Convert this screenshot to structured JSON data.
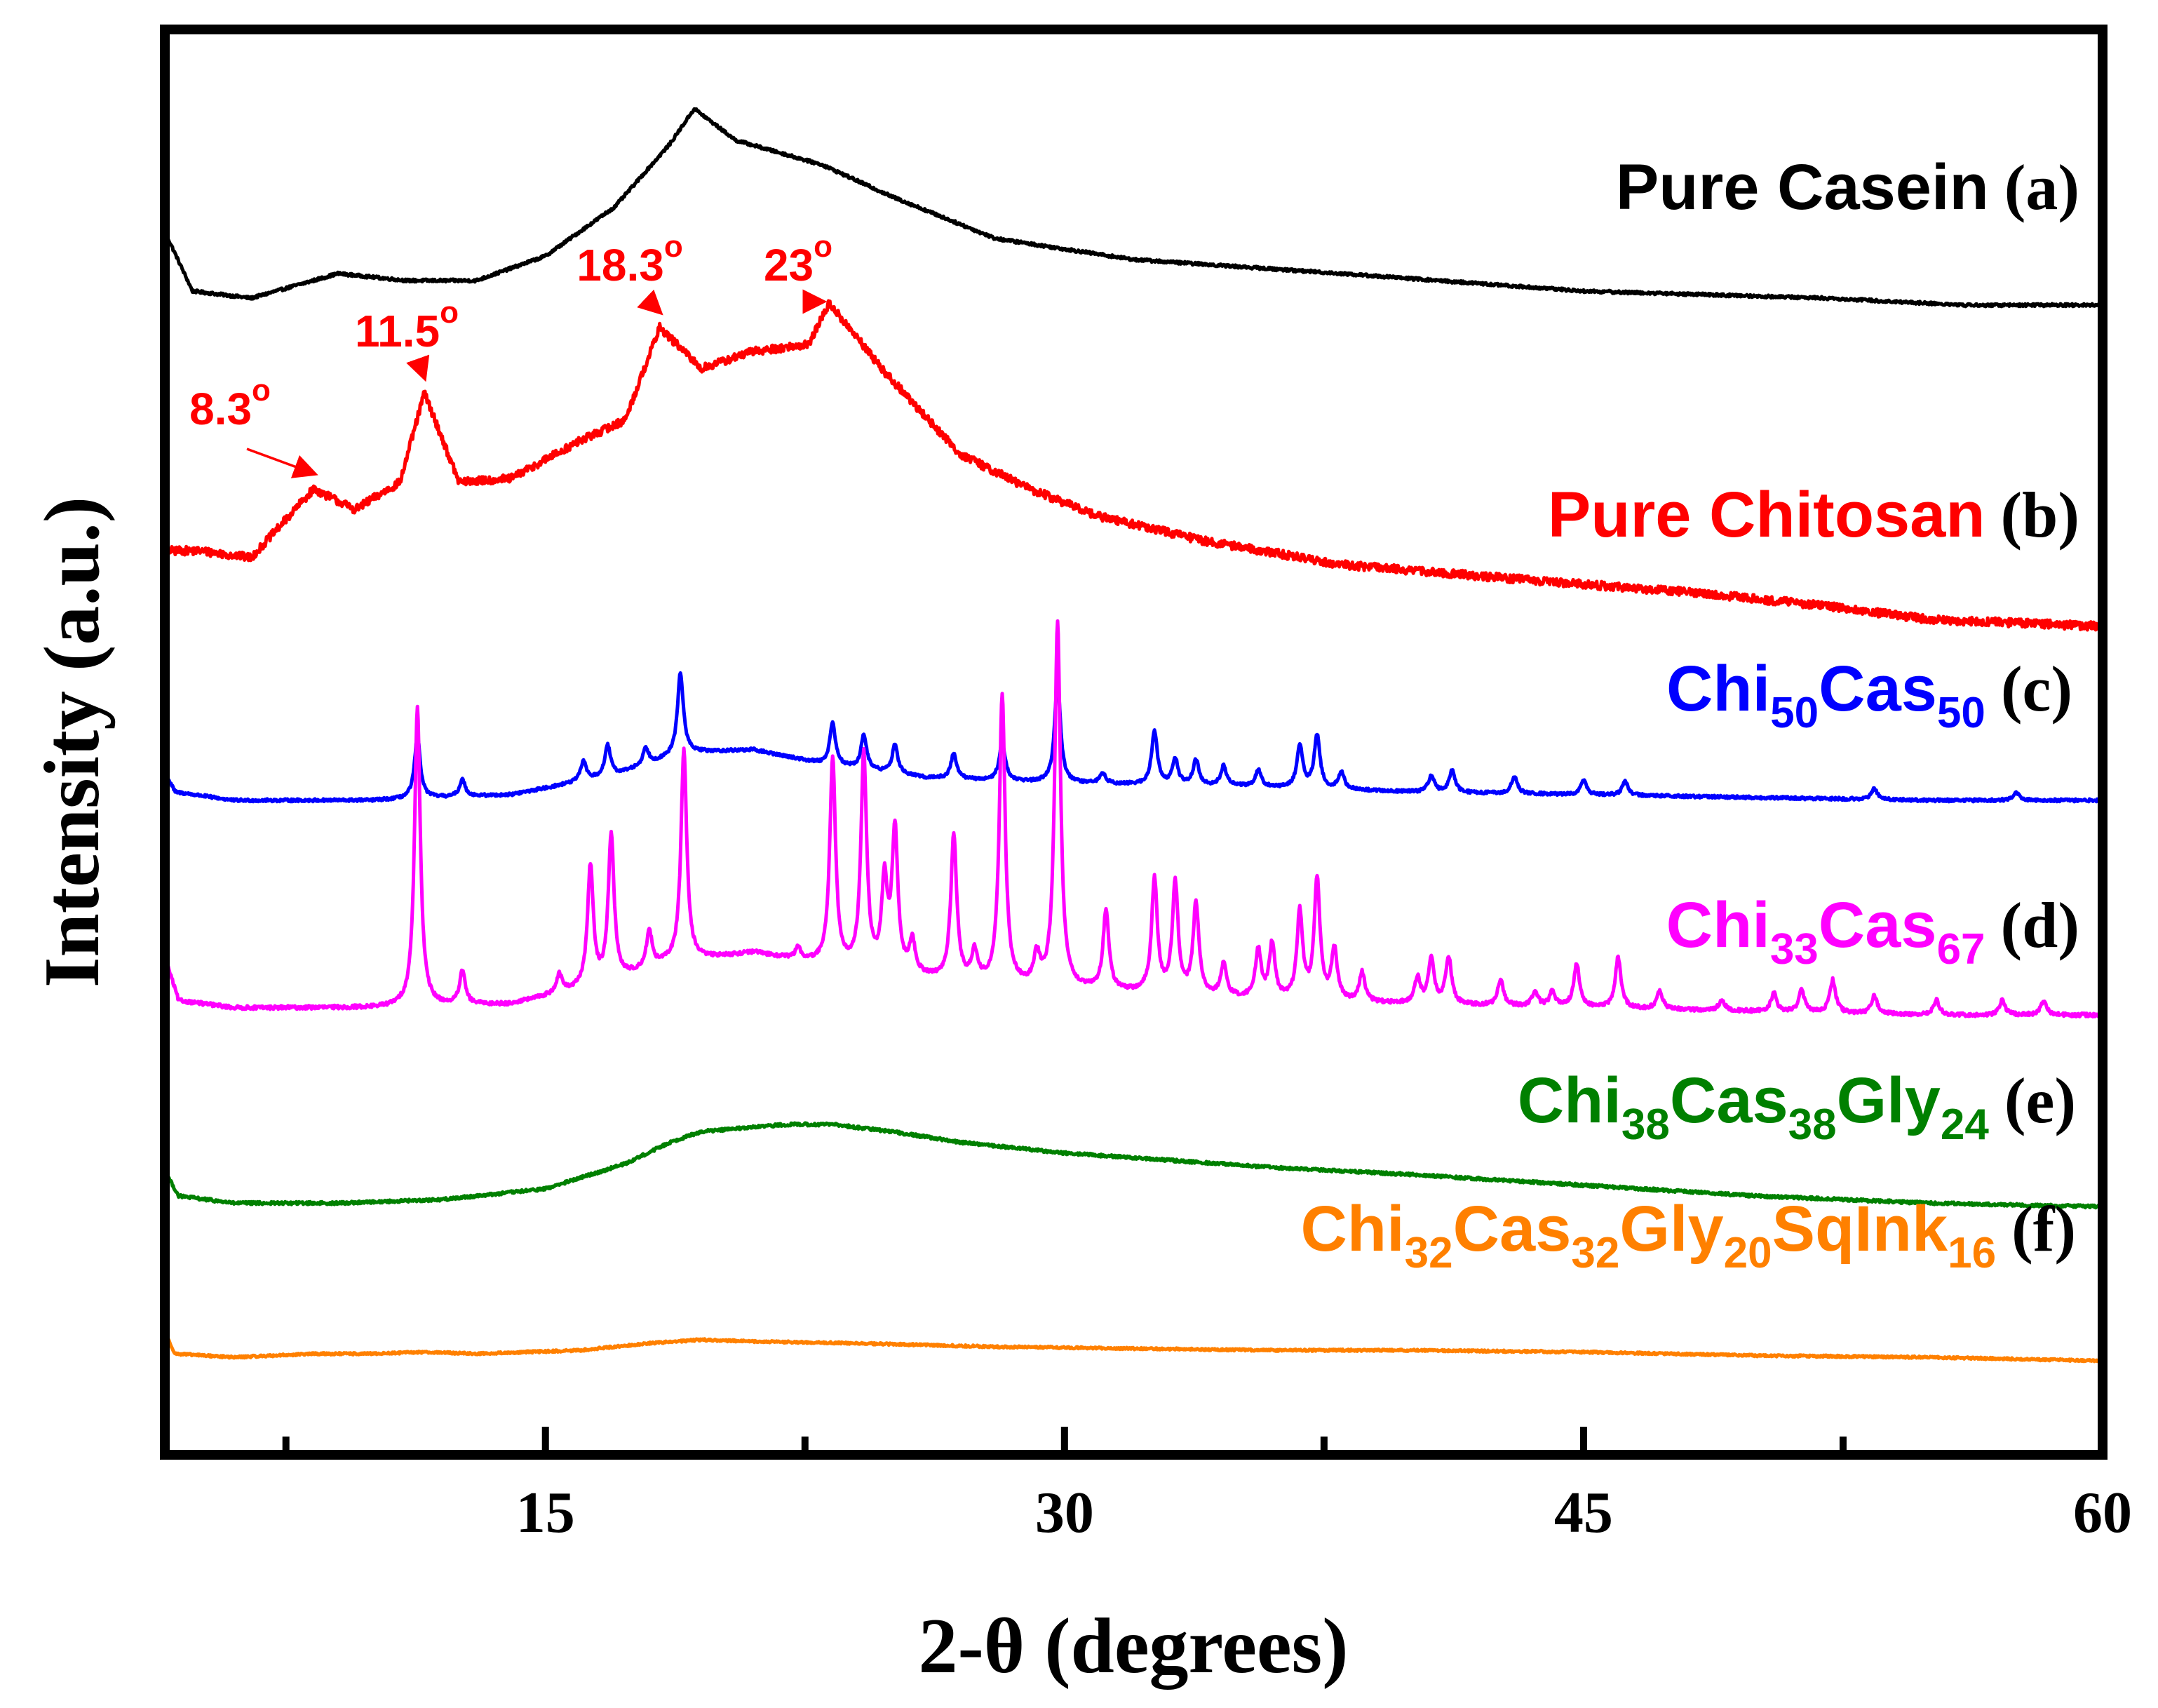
{
  "chart_data": {
    "type": "line",
    "title": "",
    "xlabel": "2-θ (degrees)",
    "ylabel": "Intensity (a.u.)",
    "xlim": [
      4,
      60
    ],
    "x_ticks": [
      15,
      30,
      45,
      60
    ],
    "x_tick_labels": [
      "15",
      "30",
      "45",
      "60"
    ],
    "x_minor_ticks": [
      7.5,
      22.5,
      37.5,
      52.5
    ],
    "y_ticks": [],
    "grid": false,
    "legend_placement": "right, next to each curve",
    "series": [
      {
        "id": "a",
        "color": "#000000",
        "tag": "(a)",
        "label": [
          {
            "t": "Pure Casein"
          }
        ],
        "baseline": 0.25,
        "noise": 0.004,
        "anchors": [
          [
            4,
            0.45
          ],
          [
            4.8,
            0.28
          ],
          [
            6.5,
            0.26
          ],
          [
            9,
            0.33
          ],
          [
            11,
            0.31
          ],
          [
            13,
            0.31
          ],
          [
            15,
            0.38
          ],
          [
            17,
            0.52
          ],
          [
            18.6,
            0.7
          ],
          [
            19.3,
            0.8
          ],
          [
            20.5,
            0.71
          ],
          [
            23,
            0.64
          ],
          [
            25,
            0.55
          ],
          [
            28,
            0.43
          ],
          [
            32,
            0.37
          ],
          [
            38,
            0.33
          ],
          [
            45,
            0.28
          ],
          [
            52,
            0.26
          ],
          [
            56,
            0.24
          ],
          [
            60,
            0.24
          ]
        ],
        "peaks": []
      },
      {
        "id": "b",
        "color": "#ff0000",
        "tag": "(b)",
        "label": [
          {
            "t": "Pure Chitosan"
          }
        ],
        "baseline": 0.15,
        "noise": 0.012,
        "anchors": [
          [
            4,
            0.52
          ],
          [
            5,
            0.52
          ],
          [
            6.5,
            0.5
          ],
          [
            8.3,
            0.7
          ],
          [
            9.5,
            0.64
          ],
          [
            10.8,
            0.72
          ],
          [
            11.5,
            0.98
          ],
          [
            12.5,
            0.72
          ],
          [
            14,
            0.73
          ],
          [
            16,
            0.84
          ],
          [
            17.3,
            0.9
          ],
          [
            18.3,
            1.17
          ],
          [
            19.5,
            1.05
          ],
          [
            21,
            1.1
          ],
          [
            22.6,
            1.12
          ],
          [
            23.2,
            1.24
          ],
          [
            24.8,
            1.04
          ],
          [
            27,
            0.8
          ],
          [
            29,
            0.7
          ],
          [
            31,
            0.62
          ],
          [
            34,
            0.55
          ],
          [
            38,
            0.48
          ],
          [
            44,
            0.43
          ],
          [
            48,
            0.4
          ],
          [
            52,
            0.36
          ],
          [
            55,
            0.32
          ],
          [
            60,
            0.3
          ]
        ],
        "peaks": []
      },
      {
        "id": "c",
        "color": "#0000ff",
        "tag": "(c)",
        "label": [
          {
            "t": "Chi"
          },
          {
            "t": "50",
            "sub": true
          },
          {
            "t": "Cas"
          },
          {
            "t": "50",
            "sub": true
          }
        ],
        "baseline": 0.15,
        "noise": 0.005,
        "anchors": [
          [
            4,
            0.21
          ],
          [
            4.3,
            0.14
          ],
          [
            6,
            0.11
          ],
          [
            10,
            0.11
          ],
          [
            14,
            0.13
          ],
          [
            17,
            0.2
          ],
          [
            19,
            0.28
          ],
          [
            21,
            0.29
          ],
          [
            23,
            0.24
          ],
          [
            26,
            0.19
          ],
          [
            30,
            0.17
          ],
          [
            35,
            0.16
          ],
          [
            40,
            0.14
          ],
          [
            45,
            0.13
          ],
          [
            50,
            0.12
          ],
          [
            55,
            0.11
          ],
          [
            60,
            0.11
          ]
        ],
        "peaks": [
          [
            11.3,
            0.22
          ],
          [
            12.6,
            0.06
          ],
          [
            16.1,
            0.07
          ],
          [
            16.8,
            0.11
          ],
          [
            17.9,
            0.06
          ],
          [
            18.9,
            0.29
          ],
          [
            23.3,
            0.15
          ],
          [
            24.2,
            0.12
          ],
          [
            25.1,
            0.1
          ],
          [
            26.8,
            0.09
          ],
          [
            28.2,
            0.14
          ],
          [
            29.8,
            0.37
          ],
          [
            31.1,
            0.04
          ],
          [
            32.6,
            0.19
          ],
          [
            33.2,
            0.09
          ],
          [
            33.8,
            0.09
          ],
          [
            34.6,
            0.07
          ],
          [
            35.6,
            0.06
          ],
          [
            36.8,
            0.15
          ],
          [
            37.3,
            0.19
          ],
          [
            38.0,
            0.06
          ],
          [
            40.6,
            0.06
          ],
          [
            41.2,
            0.08
          ],
          [
            43.0,
            0.06
          ],
          [
            45.0,
            0.05
          ],
          [
            46.2,
            0.05
          ],
          [
            53.4,
            0.04
          ],
          [
            57.5,
            0.03
          ]
        ]
      },
      {
        "id": "d",
        "color": "#ff00ff",
        "tag": "(d)",
        "label": [
          {
            "t": "Chi"
          },
          {
            "t": "33",
            "sub": true
          },
          {
            "t": "Cas"
          },
          {
            "t": "67",
            "sub": true
          }
        ],
        "baseline": 0.17,
        "noise": 0.005,
        "anchors": [
          [
            4,
            0.3
          ],
          [
            4.4,
            0.18
          ],
          [
            6,
            0.16
          ],
          [
            10,
            0.16
          ],
          [
            14,
            0.17
          ],
          [
            16.5,
            0.22
          ],
          [
            18.5,
            0.28
          ],
          [
            21,
            0.31
          ],
          [
            24,
            0.26
          ],
          [
            28,
            0.22
          ],
          [
            32,
            0.2
          ],
          [
            36,
            0.18
          ],
          [
            40,
            0.17
          ],
          [
            45,
            0.16
          ],
          [
            50,
            0.15
          ],
          [
            55,
            0.14
          ],
          [
            60,
            0.14
          ]
        ],
        "peaks": [
          [
            11.3,
            0.82
          ],
          [
            12.6,
            0.09
          ],
          [
            15.4,
            0.05
          ],
          [
            16.3,
            0.33
          ],
          [
            16.9,
            0.4
          ],
          [
            18.0,
            0.1
          ],
          [
            19.0,
            0.58
          ],
          [
            22.3,
            0.03
          ],
          [
            23.3,
            0.57
          ],
          [
            24.2,
            0.59
          ],
          [
            24.8,
            0.24
          ],
          [
            25.1,
            0.39
          ],
          [
            25.6,
            0.09
          ],
          [
            26.8,
            0.4
          ],
          [
            27.4,
            0.08
          ],
          [
            28.2,
            0.79
          ],
          [
            29.2,
            0.08
          ],
          [
            29.8,
            1.0
          ],
          [
            31.2,
            0.22
          ],
          [
            32.6,
            0.31
          ],
          [
            33.2,
            0.3
          ],
          [
            33.8,
            0.25
          ],
          [
            34.6,
            0.09
          ],
          [
            35.6,
            0.13
          ],
          [
            36.0,
            0.15
          ],
          [
            36.8,
            0.24
          ],
          [
            37.3,
            0.33
          ],
          [
            37.8,
            0.14
          ],
          [
            38.6,
            0.08
          ],
          [
            40.2,
            0.07
          ],
          [
            40.6,
            0.12
          ],
          [
            41.1,
            0.13
          ],
          [
            42.6,
            0.07
          ],
          [
            43.6,
            0.04
          ],
          [
            44.1,
            0.04
          ],
          [
            44.8,
            0.12
          ],
          [
            46.0,
            0.14
          ],
          [
            47.2,
            0.05
          ],
          [
            49.0,
            0.03
          ],
          [
            50.5,
            0.05
          ],
          [
            51.3,
            0.06
          ],
          [
            52.2,
            0.09
          ],
          [
            53.4,
            0.05
          ],
          [
            55.2,
            0.04
          ],
          [
            57.1,
            0.04
          ],
          [
            58.3,
            0.04
          ]
        ]
      },
      {
        "id": "e",
        "color": "#008000",
        "tag": "(e)",
        "label": [
          {
            "t": "Chi"
          },
          {
            "t": "38",
            "sub": true
          },
          {
            "t": "Cas"
          },
          {
            "t": "38",
            "sub": true
          },
          {
            "t": "Gly"
          },
          {
            "t": "24",
            "sub": true
          }
        ],
        "baseline": 0.08,
        "noise": 0.004,
        "anchors": [
          [
            4,
            0.17
          ],
          [
            4.4,
            0.1
          ],
          [
            6,
            0.08
          ],
          [
            9,
            0.08
          ],
          [
            12,
            0.09
          ],
          [
            15,
            0.12
          ],
          [
            17.3,
            0.19
          ],
          [
            18.6,
            0.25
          ],
          [
            19.5,
            0.28
          ],
          [
            22,
            0.3
          ],
          [
            23.3,
            0.3
          ],
          [
            25,
            0.28
          ],
          [
            27,
            0.25
          ],
          [
            30,
            0.22
          ],
          [
            33,
            0.2
          ],
          [
            36,
            0.18
          ],
          [
            40,
            0.16
          ],
          [
            45,
            0.13
          ],
          [
            50,
            0.1
          ],
          [
            55,
            0.08
          ],
          [
            60,
            0.07
          ]
        ],
        "peaks": []
      },
      {
        "id": "f",
        "color": "#ff8000",
        "tag": "(f)",
        "label": [
          {
            "t": "Chi"
          },
          {
            "t": "32",
            "sub": true
          },
          {
            "t": "Cas"
          },
          {
            "t": "32",
            "sub": true
          },
          {
            "t": "Gly"
          },
          {
            "t": "20",
            "sub": true
          },
          {
            "t": "SqInk"
          },
          {
            "t": "16",
            "sub": true
          }
        ],
        "baseline": 0.02,
        "noise": 0.003,
        "anchors": [
          [
            4,
            0.1
          ],
          [
            4.3,
            0.04
          ],
          [
            6,
            0.03
          ],
          [
            8.3,
            0.04
          ],
          [
            10,
            0.04
          ],
          [
            11.5,
            0.045
          ],
          [
            13,
            0.04
          ],
          [
            16,
            0.05
          ],
          [
            18,
            0.07
          ],
          [
            19.5,
            0.08
          ],
          [
            21,
            0.075
          ],
          [
            24,
            0.07
          ],
          [
            28,
            0.06
          ],
          [
            32,
            0.055
          ],
          [
            36,
            0.05
          ],
          [
            40,
            0.05
          ],
          [
            45,
            0.045
          ],
          [
            50,
            0.035
          ],
          [
            55,
            0.03
          ],
          [
            60,
            0.02
          ]
        ],
        "peaks": []
      }
    ],
    "annotations": [
      {
        "label": "8.3",
        "target_series": "b",
        "x": 8.3,
        "color": "#ff0000"
      },
      {
        "label": "11.5",
        "target_series": "b",
        "x": 11.5,
        "color": "#ff0000"
      },
      {
        "label": "18.3",
        "target_series": "b",
        "x": 18.3,
        "color": "#ff0000"
      },
      {
        "label": "23",
        "target_series": "b",
        "x": 23,
        "color": "#ff0000"
      }
    ],
    "annotation_unit": "o"
  }
}
